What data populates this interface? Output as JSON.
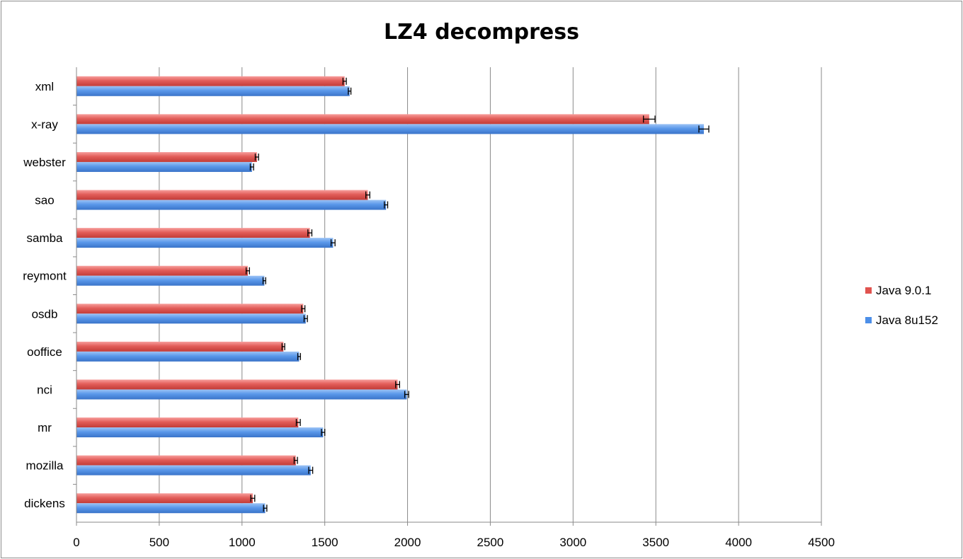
{
  "chart_data": {
    "type": "bar",
    "orientation": "horizontal",
    "title": "LZ4 decompress",
    "xlabel": "",
    "ylabel": "",
    "xlim": [
      0,
      4500
    ],
    "xticks": [
      0,
      500,
      1000,
      1500,
      2000,
      2500,
      3000,
      3500,
      4000,
      4500
    ],
    "grid": true,
    "legend_position": "right",
    "categories": [
      "xml",
      "x-ray",
      "webster",
      "sao",
      "samba",
      "reymont",
      "osdb",
      "ooffice",
      "nci",
      "mr",
      "mozilla",
      "dickens"
    ],
    "series": [
      {
        "name": "Java 9.0.1",
        "color": "#e0534f",
        "values": [
          1620,
          3460,
          1090,
          1760,
          1410,
          1035,
          1370,
          1250,
          1940,
          1340,
          1325,
          1065
        ],
        "errors": [
          10,
          35,
          10,
          12,
          12,
          10,
          10,
          8,
          12,
          12,
          10,
          12
        ]
      },
      {
        "name": "Java 8u152",
        "color": "#4d8fe8",
        "values": [
          1650,
          3790,
          1060,
          1870,
          1550,
          1135,
          1385,
          1345,
          1995,
          1490,
          1415,
          1140
        ],
        "errors": [
          8,
          30,
          10,
          10,
          12,
          8,
          10,
          8,
          12,
          10,
          12,
          10
        ]
      }
    ]
  }
}
